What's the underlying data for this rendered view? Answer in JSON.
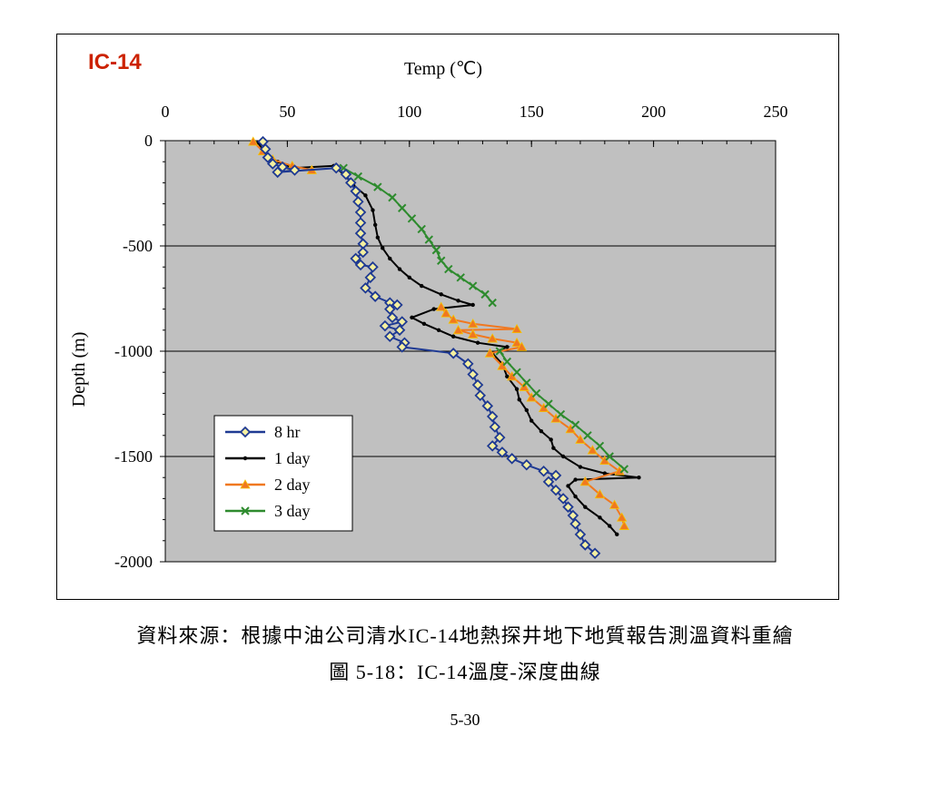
{
  "caption": {
    "source": "資料來源：根據中油公司清水IC-14地熱探井地下地質報告測溫資料重繪",
    "figure": "圖 5-18：IC-14溫度-深度曲線"
  },
  "page_number": "5-30",
  "chart_data": {
    "type": "line",
    "title": "IC-14",
    "xlabel": "Temp (℃)",
    "ylabel": "Depth (m)",
    "xlim": [
      0,
      250
    ],
    "ylim": [
      -2000,
      0
    ],
    "x_ticks": [
      0,
      50,
      100,
      150,
      200,
      250
    ],
    "y_ticks": [
      0,
      -500,
      -1000,
      -1500,
      -2000
    ],
    "x_axis_position": "top",
    "gridlines": "horizontal",
    "plot_background": "#c0c0c0",
    "legend_position": "bottom-left",
    "colors": {
      "title": "#cc2200"
    },
    "series": [
      {
        "name": "8 hr",
        "color": "#1f3a93",
        "marker": "diamond",
        "points": [
          [
            40,
            -5
          ],
          [
            41,
            -40
          ],
          [
            42,
            -80
          ],
          [
            44,
            -110
          ],
          [
            48,
            -125
          ],
          [
            53,
            -140
          ],
          [
            46,
            -150
          ],
          [
            70,
            -130
          ],
          [
            74,
            -160
          ],
          [
            76,
            -200
          ],
          [
            78,
            -240
          ],
          [
            79,
            -290
          ],
          [
            80,
            -340
          ],
          [
            80,
            -390
          ],
          [
            80,
            -440
          ],
          [
            81,
            -490
          ],
          [
            81,
            -530
          ],
          [
            78,
            -560
          ],
          [
            80,
            -590
          ],
          [
            85,
            -600
          ],
          [
            84,
            -650
          ],
          [
            82,
            -700
          ],
          [
            86,
            -740
          ],
          [
            92,
            -770
          ],
          [
            95,
            -780
          ],
          [
            92,
            -800
          ],
          [
            93,
            -840
          ],
          [
            97,
            -860
          ],
          [
            90,
            -880
          ],
          [
            96,
            -900
          ],
          [
            92,
            -930
          ],
          [
            98,
            -960
          ],
          [
            97,
            -980
          ],
          [
            118,
            -1010
          ],
          [
            124,
            -1060
          ],
          [
            126,
            -1110
          ],
          [
            128,
            -1160
          ],
          [
            129,
            -1210
          ],
          [
            132,
            -1260
          ],
          [
            134,
            -1310
          ],
          [
            135,
            -1360
          ],
          [
            137,
            -1410
          ],
          [
            134,
            -1450
          ],
          [
            138,
            -1480
          ],
          [
            142,
            -1510
          ],
          [
            148,
            -1540
          ],
          [
            155,
            -1570
          ],
          [
            160,
            -1590
          ],
          [
            157,
            -1620
          ],
          [
            160,
            -1660
          ],
          [
            163,
            -1700
          ],
          [
            165,
            -1740
          ],
          [
            167,
            -1780
          ],
          [
            168,
            -1820
          ],
          [
            170,
            -1870
          ],
          [
            172,
            -1920
          ],
          [
            176,
            -1960
          ]
        ]
      },
      {
        "name": "1 day",
        "color": "#000000",
        "marker": "dot",
        "points": [
          [
            38,
            -10
          ],
          [
            41,
            -60
          ],
          [
            46,
            -100
          ],
          [
            52,
            -130
          ],
          [
            69,
            -120
          ],
          [
            74,
            -170
          ],
          [
            77,
            -210
          ],
          [
            82,
            -260
          ],
          [
            85,
            -330
          ],
          [
            86,
            -400
          ],
          [
            87,
            -460
          ],
          [
            89,
            -510
          ],
          [
            92,
            -560
          ],
          [
            96,
            -610
          ],
          [
            100,
            -650
          ],
          [
            105,
            -690
          ],
          [
            113,
            -730
          ],
          [
            120,
            -760
          ],
          [
            126,
            -780
          ],
          [
            110,
            -800
          ],
          [
            101,
            -840
          ],
          [
            106,
            -870
          ],
          [
            112,
            -900
          ],
          [
            118,
            -930
          ],
          [
            128,
            -960
          ],
          [
            140,
            -980
          ],
          [
            134,
            -1010
          ],
          [
            138,
            -1060
          ],
          [
            140,
            -1120
          ],
          [
            144,
            -1180
          ],
          [
            145,
            -1230
          ],
          [
            148,
            -1280
          ],
          [
            150,
            -1330
          ],
          [
            154,
            -1380
          ],
          [
            158,
            -1420
          ],
          [
            159,
            -1460
          ],
          [
            163,
            -1500
          ],
          [
            170,
            -1550
          ],
          [
            180,
            -1580
          ],
          [
            194,
            -1600
          ],
          [
            168,
            -1610
          ],
          [
            165,
            -1640
          ],
          [
            168,
            -1690
          ],
          [
            172,
            -1740
          ],
          [
            178,
            -1790
          ],
          [
            182,
            -1830
          ],
          [
            185,
            -1870
          ]
        ]
      },
      {
        "name": "2 day",
        "color": "#f07820",
        "marker": "triangle",
        "points": [
          [
            36,
            -5
          ],
          [
            40,
            -50
          ],
          [
            44,
            -90
          ],
          [
            52,
            -120
          ],
          [
            60,
            -140
          ],
          [
            113,
            -790
          ],
          [
            115,
            -820
          ],
          [
            118,
            -850
          ],
          [
            126,
            -870
          ],
          [
            144,
            -895
          ],
          [
            120,
            -900
          ],
          [
            126,
            -920
          ],
          [
            134,
            -940
          ],
          [
            144,
            -960
          ],
          [
            146,
            -980
          ],
          [
            133,
            -1010
          ],
          [
            138,
            -1070
          ],
          [
            142,
            -1120
          ],
          [
            147,
            -1170
          ],
          [
            150,
            -1220
          ],
          [
            155,
            -1270
          ],
          [
            160,
            -1320
          ],
          [
            166,
            -1370
          ],
          [
            170,
            -1420
          ],
          [
            175,
            -1470
          ],
          [
            180,
            -1520
          ],
          [
            186,
            -1570
          ],
          [
            172,
            -1620
          ],
          [
            178,
            -1680
          ],
          [
            184,
            -1730
          ],
          [
            187,
            -1790
          ],
          [
            188,
            -1830
          ]
        ]
      },
      {
        "name": "3 day",
        "color": "#2e8b2e",
        "marker": "x",
        "points": [
          [
            73,
            -130
          ],
          [
            79,
            -170
          ],
          [
            87,
            -220
          ],
          [
            93,
            -270
          ],
          [
            97,
            -320
          ],
          [
            101,
            -370
          ],
          [
            105,
            -420
          ],
          [
            108,
            -470
          ],
          [
            111,
            -520
          ],
          [
            113,
            -570
          ],
          [
            116,
            -610
          ],
          [
            121,
            -650
          ],
          [
            126,
            -690
          ],
          [
            131,
            -730
          ],
          [
            134,
            -770
          ],
          [
            137,
            -1000
          ],
          [
            140,
            -1050
          ],
          [
            144,
            -1100
          ],
          [
            148,
            -1150
          ],
          [
            152,
            -1200
          ],
          [
            157,
            -1250
          ],
          [
            162,
            -1300
          ],
          [
            168,
            -1350
          ],
          [
            173,
            -1400
          ],
          [
            178,
            -1450
          ],
          [
            182,
            -1500
          ],
          [
            188,
            -1560
          ]
        ]
      }
    ]
  }
}
